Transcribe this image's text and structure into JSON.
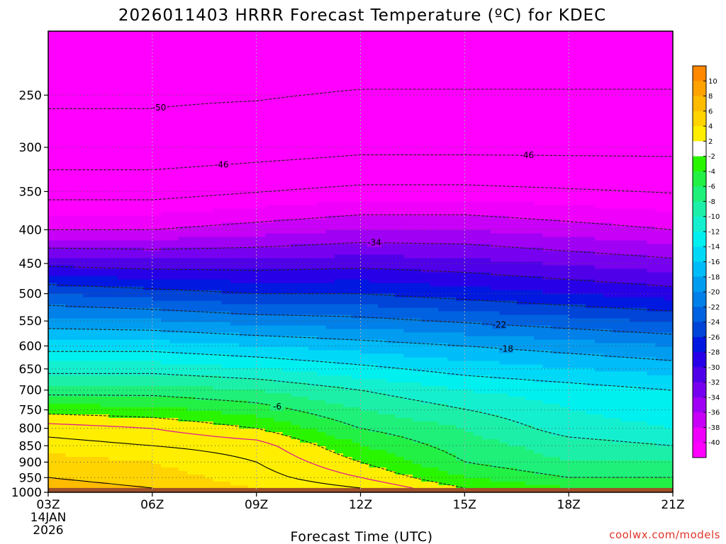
{
  "chart_data": {
    "type": "heatmap",
    "title": "2026011403 HRRR Forecast Temperature (ºC) for KDEC",
    "xlabel": "Forecast Time (UTC)",
    "x_ticks": [
      "03Z",
      "06Z",
      "09Z",
      "12Z",
      "15Z",
      "18Z",
      "21Z"
    ],
    "x_date_line1": "14JAN",
    "x_date_line2": "2026",
    "x_range_hours_utc": [
      3,
      21
    ],
    "y_scale": "log-pressure",
    "y_range_hpa": [
      200,
      1000
    ],
    "y_ticks": [
      "250",
      "300",
      "350",
      "400",
      "450",
      "500",
      "550",
      "600",
      "650",
      "700",
      "750",
      "800",
      "850",
      "900",
      "950",
      "1000"
    ],
    "surface_pressure_hpa": 985,
    "grid": true,
    "colorbar": {
      "placement": "right",
      "labels": [
        "10",
        "8",
        "6",
        "4",
        "2",
        "-2",
        "-4",
        "-6",
        "-8",
        "-10",
        "-12",
        "-14",
        "-16",
        "-18",
        "-20",
        "-22",
        "-24",
        "-26",
        "-28",
        "-30",
        "-32",
        "-34",
        "-36",
        "-38",
        "-40"
      ],
      "colors": [
        "#ff8800",
        "#ffa200",
        "#ffbb00",
        "#ffd400",
        "#ffee00",
        "#ffffff",
        "#2af500",
        "#22f044",
        "#1ef07a",
        "#1cf0a8",
        "#14f0cf",
        "#00f0f0",
        "#00d8f8",
        "#00bcf8",
        "#009cf0",
        "#0080e8",
        "#0062e0",
        "#0044d8",
        "#0018e0",
        "#2800e8",
        "#5000e8",
        "#7800f0",
        "#a000f4",
        "#c800f8",
        "#ee00fa",
        "#ff00ff"
      ]
    },
    "contour_labels": [
      "-50",
      "-46",
      "-46",
      "-34",
      "-22",
      "-18",
      "-6"
    ],
    "profiles": [
      {
        "time": "03Z",
        "levels_hpa": [
          200,
          300,
          400,
          500,
          600,
          700,
          800,
          850,
          900,
          950,
          985
        ],
        "temps_c": [
          -52,
          -49,
          -38,
          -24,
          -15,
          -7,
          1,
          3,
          5,
          6,
          7
        ]
      },
      {
        "time": "06Z",
        "levels_hpa": [
          200,
          300,
          400,
          500,
          600,
          700,
          800,
          850,
          900,
          950,
          985
        ],
        "temps_c": [
          -52,
          -49,
          -38,
          -25,
          -15,
          -7,
          0,
          2,
          4,
          5,
          6
        ]
      },
      {
        "time": "09Z",
        "levels_hpa": [
          200,
          300,
          400,
          500,
          600,
          700,
          800,
          850,
          900,
          950,
          985
        ],
        "temps_c": [
          -53,
          -48,
          -37,
          -26,
          -16,
          -8,
          -2,
          1,
          2,
          3,
          4
        ]
      },
      {
        "time": "12Z",
        "levels_hpa": [
          200,
          300,
          400,
          500,
          600,
          700,
          800,
          850,
          900,
          950,
          985
        ],
        "temps_c": [
          -53,
          -47,
          -36,
          -26,
          -17,
          -10,
          -6,
          -4,
          -2,
          0,
          2
        ]
      },
      {
        "time": "15Z",
        "levels_hpa": [
          200,
          300,
          400,
          500,
          600,
          700,
          800,
          850,
          900,
          950,
          985
        ],
        "temps_c": [
          -53,
          -47,
          -36,
          -27,
          -18,
          -12,
          -8,
          -7,
          -6,
          -4,
          -2
        ]
      },
      {
        "time": "18Z",
        "levels_hpa": [
          200,
          300,
          400,
          500,
          600,
          700,
          800,
          850,
          900,
          950,
          985
        ],
        "temps_c": [
          -53,
          -47,
          -37,
          -28,
          -19,
          -13,
          -11,
          -9,
          -8,
          -6,
          -4
        ]
      },
      {
        "time": "21Z",
        "levels_hpa": [
          200,
          300,
          400,
          500,
          600,
          700,
          800,
          850,
          900,
          950,
          985
        ],
        "temps_c": [
          -53,
          -47,
          -38,
          -29,
          -20,
          -14,
          -12,
          -10,
          -8,
          -6,
          -4
        ]
      }
    ]
  },
  "credit": "coolwx.com/models"
}
